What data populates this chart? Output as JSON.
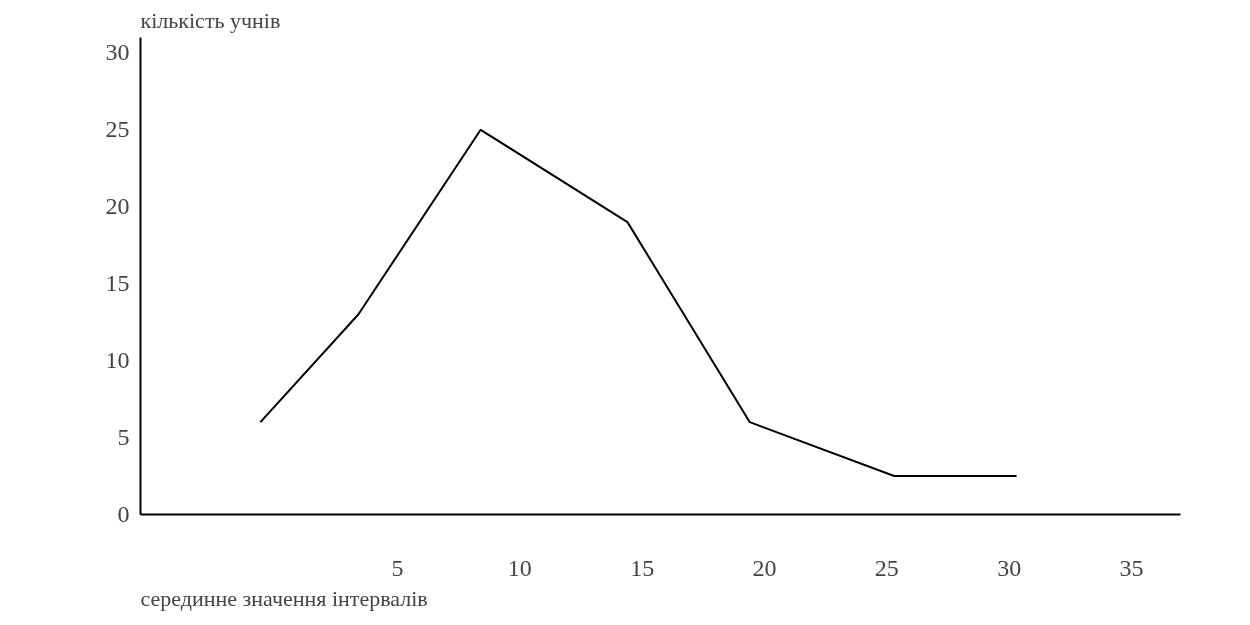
{
  "chart_data": {
    "type": "line",
    "xlabel": "серединне значення інтервалів",
    "ylabel": "кількість учнів",
    "x": [
      -0.6,
      3.4,
      8.4,
      14.4,
      19.4,
      25.3,
      30.3
    ],
    "series": [
      {
        "color": "#000000",
        "values": [
          6,
          13,
          25,
          19,
          6,
          2.5,
          2.5
        ]
      }
    ],
    "xlim": [
      -5.5,
      37
    ],
    "xticks": [
      5,
      10,
      15,
      20,
      25,
      30,
      35
    ],
    "ylim": [
      0,
      31
    ],
    "yticks": [
      0,
      5,
      10,
      15,
      20,
      25,
      30
    ],
    "grid": false,
    "marker": "none",
    "line_style": "solid"
  }
}
